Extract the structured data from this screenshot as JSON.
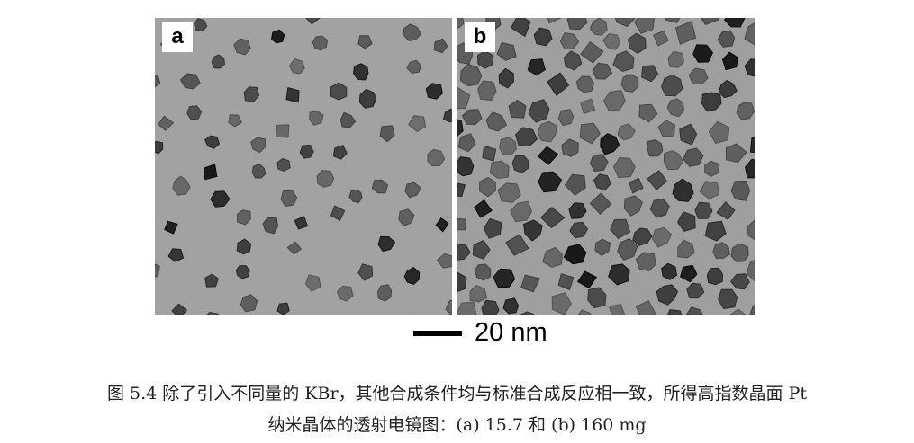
{
  "figure": {
    "panels": [
      {
        "label": "a"
      },
      {
        "label": "b"
      }
    ],
    "scale_bar_label": "20 nm",
    "caption_line1": "图 5.4 除了引入不同量的 KBr，其他合成条件均与标准合成反应相一致，所得高指数晶面 Pt",
    "caption_line2": "纳米晶体的透射电镜图：(a) 15.7 和 (b) 160 mg"
  }
}
